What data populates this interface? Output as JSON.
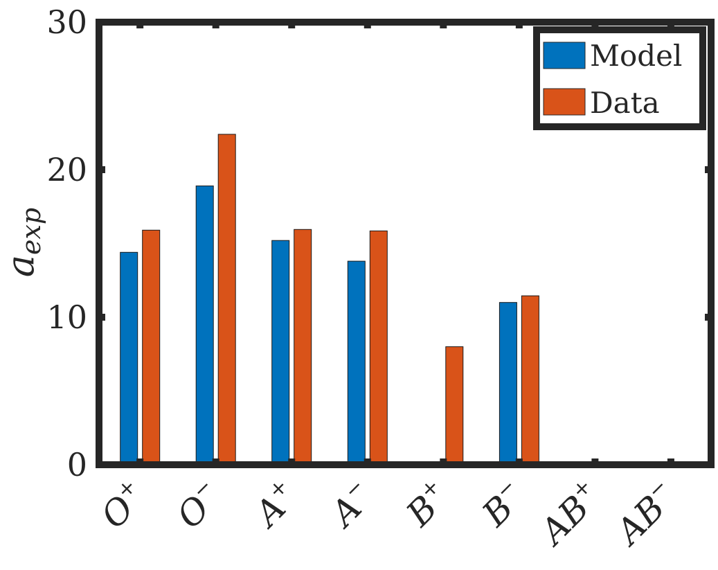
{
  "chart_data": {
    "type": "bar",
    "categories": [
      {
        "base": "O",
        "sup": "+"
      },
      {
        "base": "O",
        "sup": "−"
      },
      {
        "base": "A",
        "sup": "+"
      },
      {
        "base": "A",
        "sup": "−"
      },
      {
        "base": "B",
        "sup": "+"
      },
      {
        "base": "B",
        "sup": "−"
      },
      {
        "base": "AB",
        "sup": "+"
      },
      {
        "base": "AB",
        "sup": "−"
      }
    ],
    "series": [
      {
        "name": "Model",
        "color": "#0072BD",
        "values": [
          14.4,
          18.9,
          15.2,
          13.8,
          0,
          11.0,
          0,
          0
        ]
      },
      {
        "name": "Data",
        "color": "#D95319",
        "values": [
          15.9,
          22.4,
          15.95,
          15.85,
          8.0,
          11.45,
          0,
          0
        ]
      }
    ],
    "ylabel": {
      "main": "a",
      "sub": "exp"
    },
    "ylim": [
      0,
      30
    ],
    "yticks": [
      "0",
      "10",
      "20",
      "30"
    ],
    "legend_position": "top-right",
    "grid": false
  }
}
